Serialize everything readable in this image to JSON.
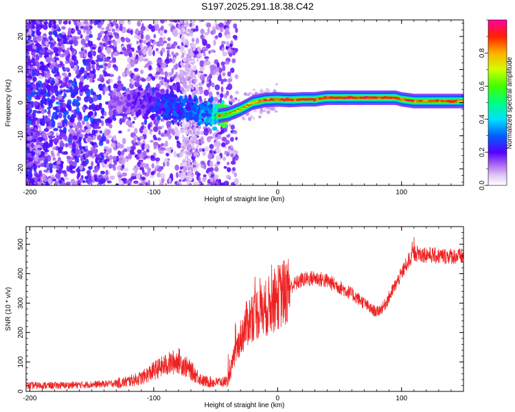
{
  "title": "S197.2025.291.18.38.C42",
  "chart_data": [
    {
      "type": "heatmap",
      "xlabel": "Height of straight line (km)",
      "ylabel": "Frequency (Hz)",
      "xlim": [
        -203,
        150
      ],
      "ylim": [
        -25,
        25
      ],
      "x_ticks": [
        -200,
        -100,
        0,
        100
      ],
      "y_ticks": [
        -20,
        -10,
        0,
        10,
        20
      ],
      "colorbar": {
        "label": "Normalized spectral amplitude",
        "range": [
          0,
          1
        ],
        "ticks": [
          "0.0",
          "0.2",
          "0.4",
          "0.6",
          "0.8"
        ]
      },
      "ridge": {
        "x": [
          -130,
          -110,
          -90,
          -70,
          -55,
          -48,
          -40,
          -30,
          -20,
          -10,
          0,
          10,
          20,
          30,
          40,
          60,
          80,
          95,
          100,
          110,
          130,
          150
        ],
        "freq": [
          0,
          0,
          -1,
          -2,
          -3,
          -4,
          -3.5,
          -2,
          0,
          0.8,
          1,
          0.8,
          1,
          1,
          1.5,
          1.5,
          1.5,
          1.5,
          1,
          0.5,
          0.5,
          0.5
        ],
        "amplitude": [
          0.15,
          0.2,
          0.3,
          0.3,
          0.4,
          0.6,
          0.6,
          0.7,
          0.8,
          0.9,
          0.95,
          0.95,
          0.95,
          0.95,
          0.98,
          0.98,
          0.98,
          0.98,
          0.95,
          0.9,
          0.9,
          0.9
        ]
      }
    },
    {
      "type": "line",
      "xlabel": "Height of straight line (km)",
      "ylabel": "SNR (10 * v/v)",
      "xlim": [
        -203,
        150
      ],
      "ylim": [
        0,
        560
      ],
      "x_ticks": [
        -200,
        -100,
        0,
        100
      ],
      "y_ticks": [
        0,
        100,
        200,
        300,
        400,
        500
      ],
      "series": [
        {
          "name": "SNR",
          "color": "#ee2222",
          "x": [
            -203,
            -180,
            -160,
            -140,
            -125,
            -110,
            -100,
            -90,
            -80,
            -70,
            -60,
            -50,
            -40,
            -35,
            -30,
            -25,
            -20,
            -15,
            -10,
            -5,
            0,
            5,
            10,
            20,
            30,
            40,
            50,
            60,
            70,
            75,
            80,
            85,
            90,
            95,
            100,
            105,
            110,
            120,
            130,
            140,
            150
          ],
          "y": [
            20,
            20,
            22,
            25,
            30,
            45,
            70,
            90,
            105,
            70,
            35,
            30,
            35,
            120,
            180,
            230,
            260,
            270,
            280,
            300,
            320,
            335,
            355,
            380,
            385,
            375,
            355,
            330,
            300,
            280,
            270,
            285,
            320,
            360,
            400,
            440,
            470,
            465,
            460,
            460,
            458
          ]
        }
      ]
    }
  ]
}
